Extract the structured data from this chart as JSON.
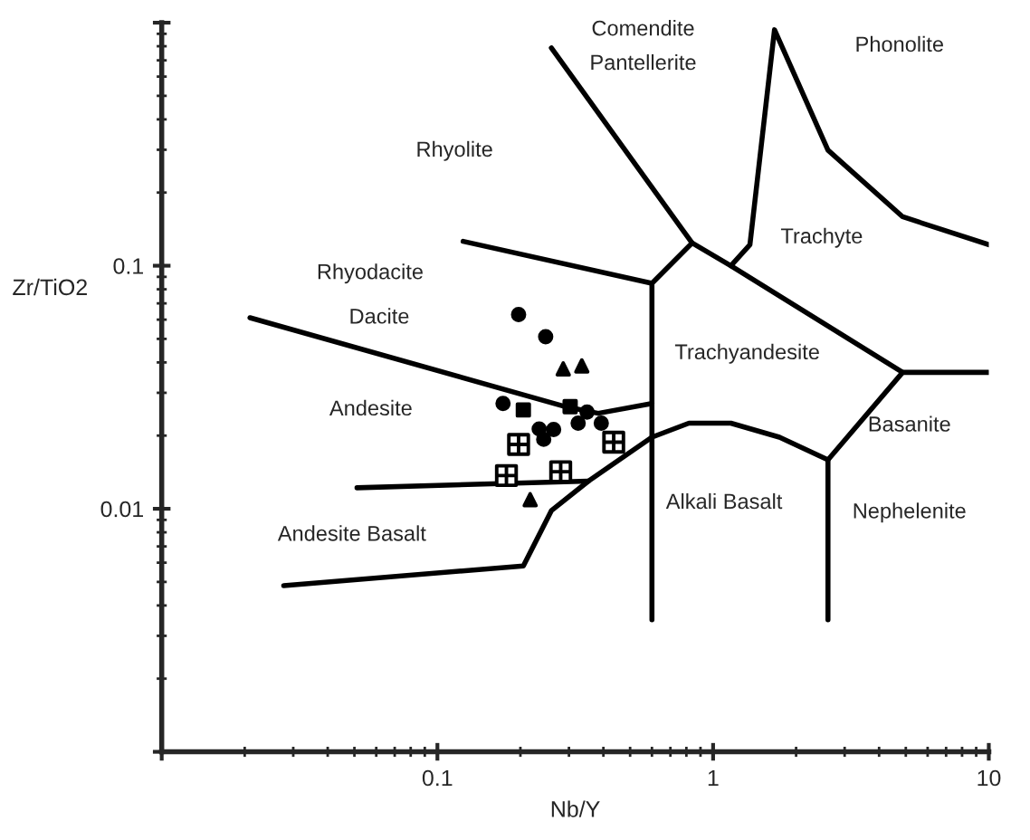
{
  "chart_data": {
    "type": "scatter",
    "xlabel": "Nb/Y",
    "ylabel": "Zr/TiO2",
    "log": "xy",
    "grid": false,
    "xlim": [
      0.01,
      10
    ],
    "ylim": [
      0.001,
      1
    ],
    "xticks": [
      {
        "value": 0.01,
        "label": null
      },
      0.1,
      1,
      10
    ],
    "yticks": [
      {
        "value": 0.001,
        "label": null
      },
      0.01,
      0.1,
      {
        "value": 1,
        "label": null
      }
    ],
    "series": [
      {
        "type": "line",
        "color": "#000000",
        "x": [
          0.259,
          0.839,
          0.6,
          0.6
        ],
        "values": [
          0.787,
          0.124,
          0.0847,
          0.00349
        ]
      },
      {
        "type": "line",
        "color": "#000000",
        "x": [
          0.124,
          0.6
        ],
        "values": [
          0.126,
          0.0847
        ]
      },
      {
        "type": "line",
        "color": "#000000",
        "x": [
          0.839,
          1.16,
          4.87,
          10
        ],
        "values": [
          0.124,
          0.1,
          0.0364,
          0.0364
        ]
      },
      {
        "type": "line",
        "color": "#000000",
        "x": [
          1.16,
          1.36,
          1.67,
          2.61,
          4.87,
          10
        ],
        "values": [
          0.1,
          0.122,
          0.935,
          0.299,
          0.159,
          0.122
        ]
      },
      {
        "type": "line",
        "color": "#000000",
        "x": [
          0.0209,
          0.292,
          0.383,
          0.6
        ],
        "values": [
          0.0611,
          0.0263,
          0.0247,
          0.0271
        ]
      },
      {
        "type": "line",
        "color": "#000000",
        "x": [
          2.61,
          2.61
        ],
        "values": [
          0.0159,
          0.00349
        ]
      },
      {
        "type": "line",
        "color": "#000000",
        "x": [
          0.0511,
          0.353
        ],
        "values": [
          0.0122,
          0.013
        ]
      },
      {
        "type": "line",
        "color": "#000000",
        "x": [
          0.0277,
          0.205,
          0.259,
          0.353,
          0.6,
          0.817,
          1.16,
          1.74,
          2.61,
          4.87
        ],
        "values": [
          0.00483,
          0.00582,
          0.00982,
          0.013,
          0.0197,
          0.0225,
          0.0225,
          0.0197,
          0.0159,
          0.0364
        ]
      },
      {
        "color": "#000000",
        "marker": "circle",
        "x": [
          0.197,
          0.247,
          0.349
        ],
        "values": [
          0.063,
          0.051,
          0.025
        ]
      },
      {
        "color": "#000000",
        "marker": "triangle",
        "x": [
          0.286,
          0.334,
          0.217
        ],
        "values": [
          0.0376,
          0.0387,
          0.0109
        ]
      },
      {
        "color": "#000000",
        "marker": "circle",
        "x": [
          0.173,
          0.234,
          0.264,
          0.243,
          0.324,
          0.393
        ],
        "values": [
          0.0271,
          0.0213,
          0.0212,
          0.0193,
          0.0225,
          0.0225
        ]
      },
      {
        "color": "#000000",
        "marker": "square",
        "x": [
          0.205,
          0.303
        ],
        "values": [
          0.0255,
          0.0263
        ]
      },
      {
        "color": "#000000",
        "marker": "cross",
        "x": [
          0.197,
          0.436,
          0.178,
          0.28
        ],
        "values": [
          0.0184,
          0.0188,
          0.0137,
          0.0142
        ]
      }
    ],
    "annotations": [
      "Comendite",
      "Pantellerite",
      "Phonolite",
      "Rhyolite",
      "Trachyte",
      "Rhyodacite",
      "Dacite",
      "Trachyandesite",
      "Andesite",
      "Basanite",
      "Alkali Basalt",
      "Nephelenite",
      "Andesite Basalt"
    ]
  }
}
